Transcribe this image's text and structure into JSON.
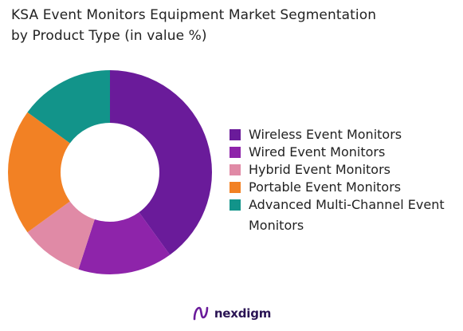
{
  "chart_data": {
    "type": "pie",
    "title_lines": [
      "KSA Event Monitors Equipment Market Segmentation",
      "by Product Type (in value %)"
    ],
    "categories": [
      "Wireless Event Monitors",
      "Wired Event Monitors",
      "Hybrid Event Monitors",
      "Portable Event Monitors",
      "Advanced Multi-Channel Event Monitors"
    ],
    "values": [
      40,
      15,
      10,
      20,
      15
    ],
    "colors": [
      "#6a1b9a",
      "#8e24aa",
      "#e08aa6",
      "#f28124",
      "#12948a"
    ],
    "donut": true,
    "legend_position": "right"
  },
  "brand": {
    "name": "nexdigm",
    "icon": "nexdigm-logo-icon"
  }
}
